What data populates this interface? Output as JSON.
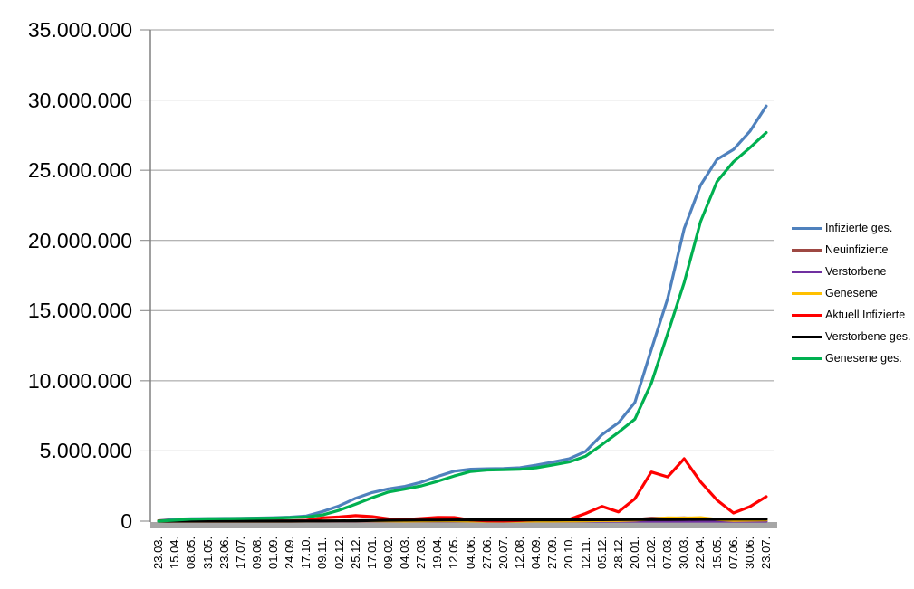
{
  "chart_data": {
    "type": "line",
    "title": "",
    "xlabel": "",
    "ylabel": "",
    "ylim": [
      0,
      35000000
    ],
    "grid": true,
    "legend_position": "right",
    "ytick_labels": [
      "0",
      "5.000.000",
      "10.000.000",
      "15.000.000",
      "20.000.000",
      "25.000.000",
      "30.000.000",
      "35.000.000"
    ],
    "categories": [
      "23.03.",
      "15.04.",
      "08.05.",
      "31.05.",
      "23.06.",
      "17.07.",
      "09.08.",
      "01.09.",
      "24.09.",
      "17.10.",
      "09.11.",
      "02.12.",
      "25.12.",
      "17.01.",
      "09.02.",
      "04.03.",
      "27.03.",
      "19.04.",
      "12.05.",
      "04.06.",
      "27.06.",
      "20.07.",
      "12.08.",
      "04.09.",
      "27.09.",
      "20.10.",
      "12.11.",
      "05.12.",
      "28.12.",
      "20.01.",
      "12.02.",
      "07.03.",
      "30.03.",
      "22.04.",
      "15.05.",
      "07.06.",
      "30.06.",
      "23.07."
    ],
    "series": [
      {
        "name": "Infizierte ges.",
        "color": "#4F81BD",
        "values": [
          29000,
          134000,
          170000,
          183000,
          192000,
          202000,
          217000,
          246000,
          281000,
          366000,
          690000,
          1090000,
          1630000,
          2040000,
          2300000,
          2472000,
          2776000,
          3188000,
          3558000,
          3700000,
          3733000,
          3752000,
          3802000,
          3992000,
          4207000,
          4440000,
          4970000,
          6160000,
          7010000,
          8460000,
          12220000,
          15870000,
          20840000,
          23940000,
          25770000,
          26470000,
          27770000,
          29570000
        ]
      },
      {
        "name": "Neuinfizierte",
        "color": "#9E4843",
        "values": [
          2000,
          3000,
          1000,
          400,
          500,
          400,
          1000,
          1300,
          1900,
          7300,
          15500,
          17300,
          25000,
          13500,
          8000,
          9200,
          20000,
          24000,
          15000,
          3400,
          600,
          1300,
          5000,
          8000,
          7700,
          17000,
          39000,
          57000,
          40000,
          112000,
          210000,
          200000,
          240000,
          160000,
          66000,
          36000,
          108000,
          95000
        ]
      },
      {
        "name": "Verstorbene",
        "color": "#7030A0",
        "values": [
          100,
          200,
          150,
          50,
          20,
          10,
          10,
          10,
          10,
          30,
          150,
          400,
          700,
          900,
          700,
          300,
          200,
          250,
          250,
          100,
          50,
          20,
          20,
          50,
          60,
          80,
          200,
          350,
          400,
          200,
          200,
          250,
          300,
          300,
          150,
          100,
          100,
          120
        ]
      },
      {
        "name": "Genesene",
        "color": "#FFC000",
        "values": [
          100,
          3000,
          2000,
          700,
          500,
          400,
          700,
          1100,
          1500,
          4000,
          12000,
          17000,
          21000,
          19000,
          11000,
          8000,
          13000,
          19000,
          18000,
          9000,
          1600,
          800,
          3000,
          6000,
          8000,
          12000,
          27000,
          43000,
          45000,
          75000,
          150000,
          230000,
          220000,
          250000,
          120000,
          50000,
          70000,
          90000
        ]
      },
      {
        "name": "Aktuell Infizierte",
        "color": "#FF0000",
        "values": [
          26000,
          58000,
          20000,
          10000,
          7000,
          5000,
          10000,
          15000,
          21000,
          60000,
          237000,
          295000,
          390000,
          321000,
          160000,
          115000,
          185000,
          262000,
          258000,
          76000,
          25000,
          15000,
          45000,
          100000,
          110000,
          130000,
          550000,
          1050000,
          660000,
          1600000,
          3500000,
          3150000,
          4450000,
          2800000,
          1500000,
          580000,
          1030000,
          1750000
        ]
      },
      {
        "name": "Verstorbene ges.",
        "color": "#000000",
        "values": [
          200,
          3900,
          7400,
          8500,
          8900,
          9100,
          9200,
          9300,
          9400,
          9700,
          11000,
          17600,
          29000,
          47000,
          62000,
          71000,
          75700,
          80500,
          85500,
          89000,
          90500,
          91400,
          91800,
          92300,
          93200,
          94900,
          97500,
          103000,
          111000,
          116500,
          120500,
          124300,
          128500,
          133700,
          137200,
          139500,
          140700,
          142200
        ]
      },
      {
        "name": "Genesene ges.",
        "color": "#00B050",
        "values": [
          3000,
          72000,
          145000,
          166000,
          177000,
          188000,
          198000,
          222000,
          250000,
          297000,
          442000,
          778000,
          1210000,
          1672000,
          2073000,
          2286000,
          2515000,
          2845000,
          3215000,
          3538000,
          3640000,
          3663000,
          3695000,
          3800000,
          4005000,
          4215000,
          4630000,
          5450000,
          6330000,
          7270000,
          9820000,
          13370000,
          17000000,
          21350000,
          24190000,
          25600000,
          26600000,
          27680000
        ]
      }
    ],
    "style": {
      "grid_color": "#9B9B9B",
      "axis_color": "#808080",
      "zero_bar_color": "#A6A6A6",
      "background": "#FFFFFF"
    }
  }
}
